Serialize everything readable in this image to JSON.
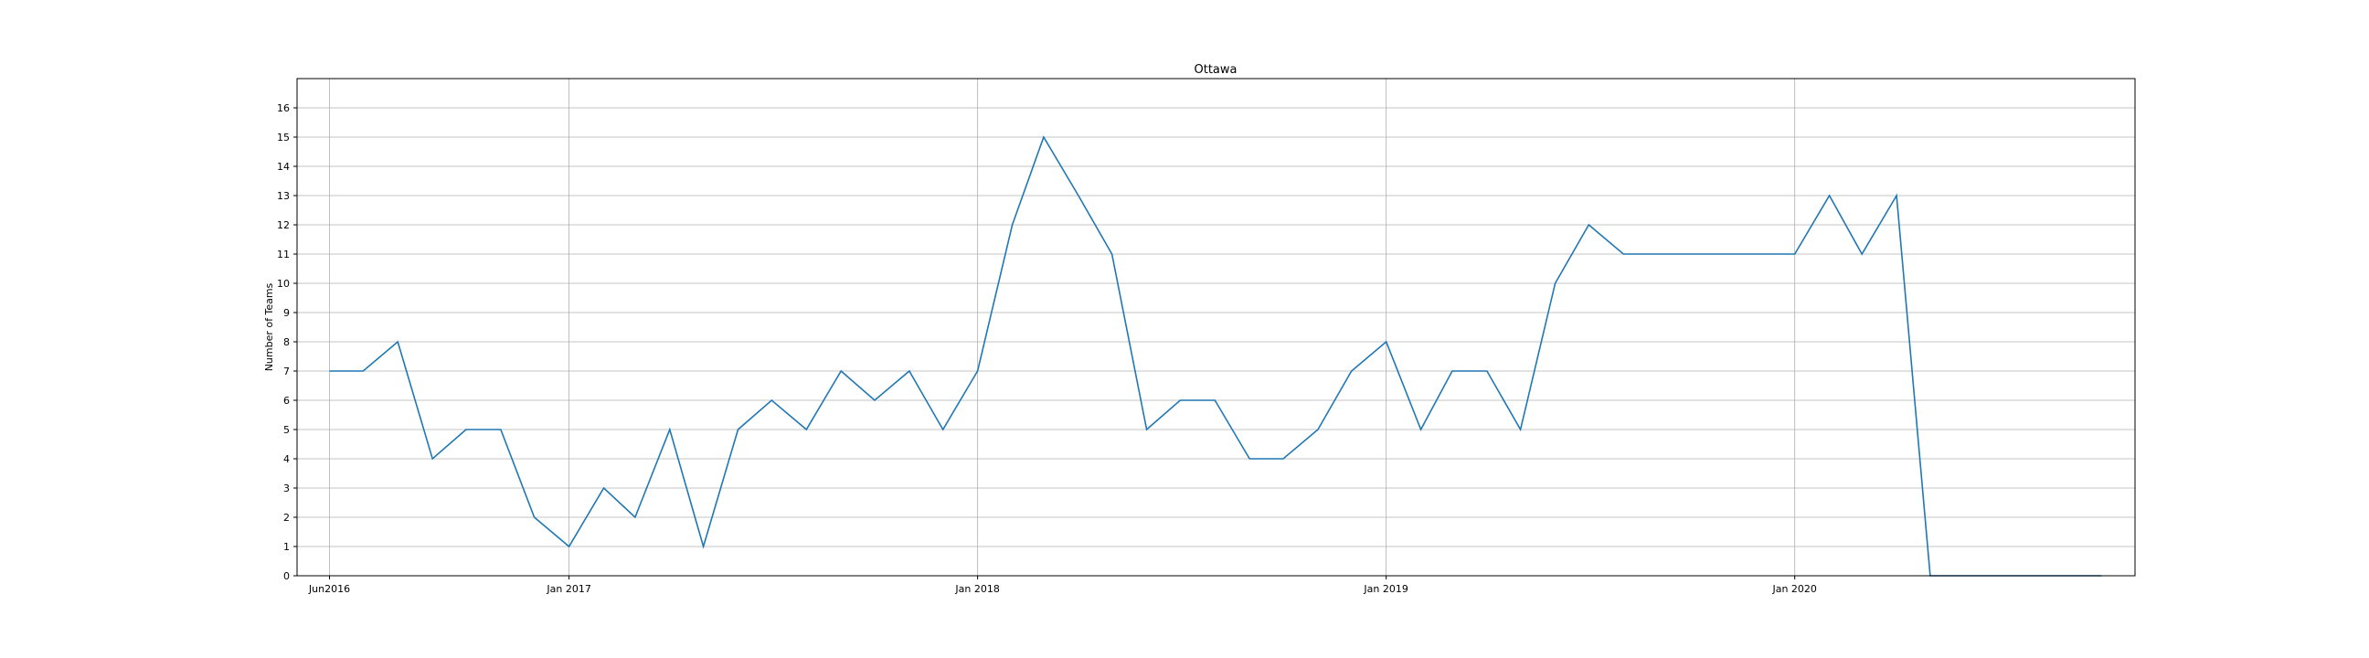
{
  "chart_data": {
    "type": "line",
    "title": "Ottawa",
    "xlabel": "",
    "ylabel": "Number of Teams",
    "ylim": [
      0,
      17
    ],
    "yticks": [
      0,
      1,
      2,
      3,
      4,
      5,
      6,
      7,
      8,
      9,
      10,
      11,
      12,
      13,
      14,
      15,
      16
    ],
    "xlim": [
      "2016-05-03",
      "2020-10-31"
    ],
    "xticks": [
      {
        "date": "2016-06-01",
        "label": "Jun2016"
      },
      {
        "date": "2017-01-01",
        "label": "Jan 2017"
      },
      {
        "date": "2018-01-01",
        "label": "Jan 2018"
      },
      {
        "date": "2019-01-01",
        "label": "Jan 2019"
      },
      {
        "date": "2020-01-01",
        "label": "Jan 2020"
      }
    ],
    "grid": true,
    "line_color": "#1f77b4",
    "series": [
      {
        "x": [
          "2016-06-01",
          "2016-07-01",
          "2016-08-01",
          "2016-09-01",
          "2016-10-01",
          "2016-11-01",
          "2016-12-01",
          "2017-01-01",
          "2017-02-01",
          "2017-03-01",
          "2017-04-01",
          "2017-05-01",
          "2017-06-01",
          "2017-07-01",
          "2017-08-01",
          "2017-09-01",
          "2017-10-01",
          "2017-11-01",
          "2017-12-01",
          "2018-01-01",
          "2018-02-01",
          "2018-03-01",
          "2018-04-01",
          "2018-05-01",
          "2018-06-01",
          "2018-07-01",
          "2018-08-01",
          "2018-09-01",
          "2018-10-01",
          "2018-11-01",
          "2018-12-01",
          "2019-01-01",
          "2019-02-01",
          "2019-03-01",
          "2019-04-01",
          "2019-05-01",
          "2019-06-01",
          "2019-07-01",
          "2019-08-01",
          "2019-09-01",
          "2019-10-01",
          "2019-11-01",
          "2019-12-01",
          "2020-01-01",
          "2020-02-01",
          "2020-03-01",
          "2020-04-01",
          "2020-05-01",
          "2020-06-01",
          "2020-07-01",
          "2020-08-01",
          "2020-09-01",
          "2020-10-01"
        ],
        "values": [
          7,
          7,
          8,
          4,
          5,
          5,
          2,
          1,
          3,
          2,
          5,
          1,
          5,
          6,
          5,
          7,
          6,
          7,
          5,
          7,
          12,
          15,
          13,
          11,
          5,
          6,
          6,
          4,
          4,
          5,
          7,
          8,
          5,
          7,
          7,
          5,
          10,
          12,
          11,
          11,
          11,
          11,
          11,
          11,
          13,
          11,
          13,
          0,
          0,
          0,
          0,
          0,
          0
        ]
      }
    ]
  }
}
